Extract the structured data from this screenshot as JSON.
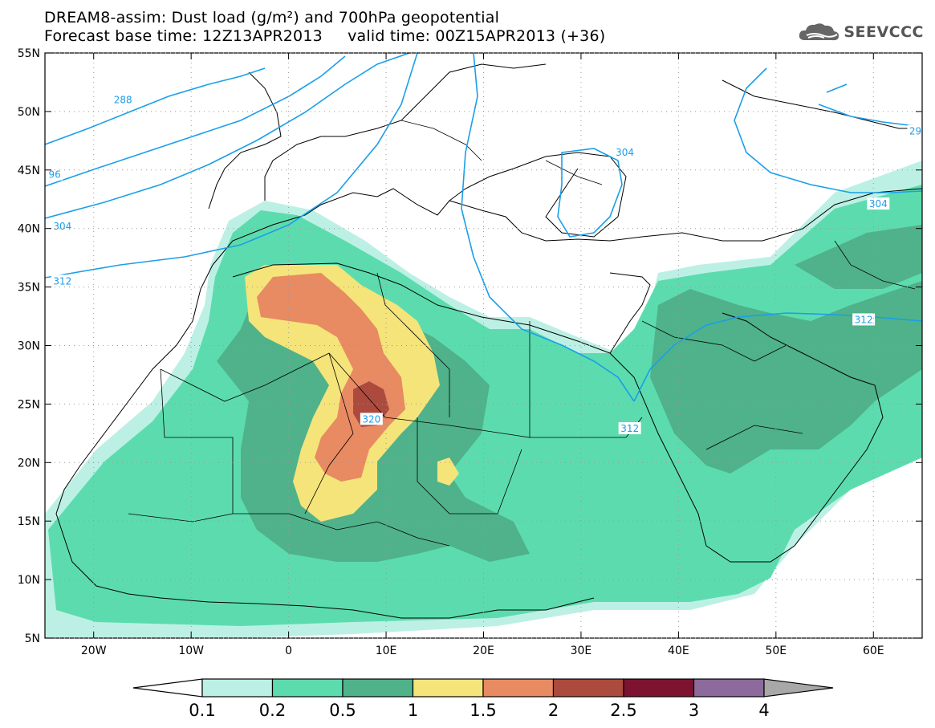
{
  "title": {
    "line1": "DREAM8-assim: Dust load (g/m²) and 700hPa geopotential",
    "line2": "Forecast base time: 12Z13APR2013     valid time: 00Z15APR2013 (+36)"
  },
  "logo": {
    "text": "SEEVCCC",
    "icon": "cloud-icon"
  },
  "axes": {
    "lon_range": [
      -25,
      65
    ],
    "lat_range": [
      5,
      55
    ],
    "x_ticks": [
      {
        "v": -20,
        "label": "20W"
      },
      {
        "v": -10,
        "label": "10W"
      },
      {
        "v": 0,
        "label": "0"
      },
      {
        "v": 10,
        "label": "10E"
      },
      {
        "v": 20,
        "label": "20E"
      },
      {
        "v": 30,
        "label": "30E"
      },
      {
        "v": 40,
        "label": "40E"
      },
      {
        "v": 50,
        "label": "50E"
      },
      {
        "v": 60,
        "label": "60E"
      }
    ],
    "y_ticks": [
      {
        "v": 55,
        "label": "55N"
      },
      {
        "v": 50,
        "label": "50N"
      },
      {
        "v": 45,
        "label": "45N"
      },
      {
        "v": 40,
        "label": "40N"
      },
      {
        "v": 35,
        "label": "35N"
      },
      {
        "v": 30,
        "label": "30N"
      },
      {
        "v": 25,
        "label": "25N"
      },
      {
        "v": 20,
        "label": "20N"
      },
      {
        "v": 15,
        "label": "15N"
      },
      {
        "v": 10,
        "label": "10N"
      },
      {
        "v": 5,
        "label": "5N"
      }
    ],
    "grid": "dotted"
  },
  "colorbar": {
    "colors": [
      "#bdf0e4",
      "#5cdcae",
      "#4fb28a",
      "#f5e47a",
      "#e88a62",
      "#ad4a3e",
      "#7d1330",
      "#8c6a9c"
    ],
    "under_color": "#ffffff",
    "over_color": "#a8a8a8",
    "labels": [
      "0.1",
      "0.2",
      "0.5",
      "1",
      "1.5",
      "2",
      "2.5",
      "3",
      "4"
    ]
  },
  "contour_labels": [
    {
      "text": "288",
      "lon": -17,
      "lat": 51
    },
    {
      "text": "96",
      "lon": -24,
      "lat": 44.6
    },
    {
      "text": "304",
      "lon": -23.2,
      "lat": 40.2
    },
    {
      "text": "312",
      "lon": -23.2,
      "lat": 35.5
    },
    {
      "text": "320",
      "lon": 8.5,
      "lat": 23.7
    },
    {
      "text": "312",
      "lon": 35,
      "lat": 22.9
    },
    {
      "text": "312",
      "lon": 59,
      "lat": 32.2
    },
    {
      "text": "304",
      "lon": 60.5,
      "lat": 42.1
    },
    {
      "text": "304",
      "lon": 34.5,
      "lat": 46.5
    },
    {
      "text": "29",
      "lon": 64.3,
      "lat": 48.3
    }
  ]
}
